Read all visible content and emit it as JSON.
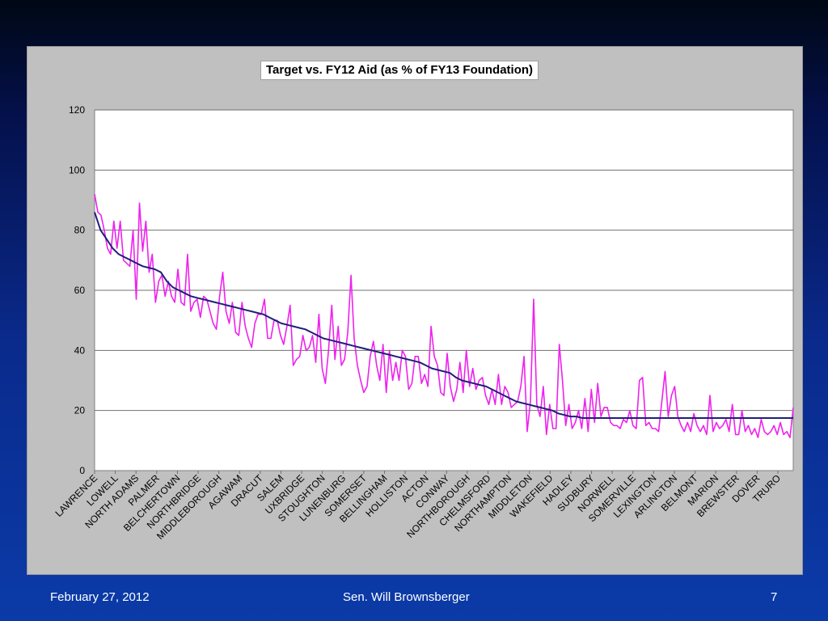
{
  "footer": {
    "date": "February 27, 2012",
    "author": "Sen. Will Brownsberger",
    "page_number": "7"
  },
  "colors": {
    "target_line": "#1f1f7a",
    "aid_line": "#ee22ee",
    "plot_bg": "#ffffff",
    "panel_bg": "#c0c0c0"
  },
  "chart_data": {
    "type": "line",
    "title": "Target vs. FY12 Aid (as %  of FY13 Foundation)",
    "xlabel": "",
    "ylabel": "",
    "ylim": [
      0,
      120
    ],
    "yticks": [
      0,
      20,
      40,
      60,
      80,
      100,
      120
    ],
    "grid": true,
    "legend": "none",
    "x_tick_labels": [
      "LAWRENCE",
      "LOWELL",
      "NORTH ADAMS",
      "PALMER",
      "BELCHERTOWN",
      "NORTHBRIDGE",
      "MIDDLEBOROUGH",
      "AGAWAM",
      "DRACUT",
      "SALEM",
      "UXBRIDGE",
      "STOUGHTON",
      "LUNENBURG",
      "SOMERSET",
      "BELLINGHAM",
      "HOLLISTON",
      "ACTON",
      "CONWAY",
      "NORTHBOROUGH",
      "CHELMSFORD",
      "NORTHAMPTON",
      "MIDDLETON",
      "WAKEFIELD",
      "HADLEY",
      "SUDBURY",
      "NORWELL",
      "SOMERVILLE",
      "LEXINGTON",
      "ARLINGTON",
      "BELMONT",
      "MARION",
      "BREWSTER",
      "DOVER",
      "TRURO"
    ],
    "series": [
      {
        "key": "target",
        "values": [
          86,
          80,
          77,
          74,
          72,
          71,
          70,
          69,
          68,
          67.5,
          67,
          66,
          63,
          61,
          60,
          59,
          58,
          57.5,
          57,
          56.5,
          56,
          55.5,
          55,
          54.5,
          54,
          53.5,
          53,
          52.5,
          52,
          51,
          50,
          49,
          48.5,
          48,
          47.5,
          47,
          46,
          45,
          44,
          43.5,
          43,
          42.5,
          42,
          41.5,
          41,
          40.5,
          40,
          39.5,
          39,
          38.5,
          38,
          37.5,
          37,
          36.5,
          36,
          35,
          34,
          33.5,
          33,
          32.5,
          31,
          30,
          29.5,
          29,
          28.5,
          28,
          27,
          26,
          25,
          24,
          23,
          22.5,
          22,
          21.5,
          21,
          20.5,
          20,
          19,
          18.5,
          18,
          18,
          17.5,
          17.5,
          17.5,
          17.5,
          17.5,
          17.5,
          17.5,
          17.5,
          17.5,
          17.5,
          17.5,
          17.5,
          17.5,
          17.5,
          17.5,
          17.5,
          17.5,
          17.5,
          17.5,
          17.5,
          17.5,
          17.5,
          17.5,
          17.5,
          17.5,
          17.5,
          17.5,
          17.5,
          17.5,
          17.5,
          17.5,
          17.5,
          17.5,
          17.5,
          17.5,
          17.5
        ]
      },
      {
        "key": "aid",
        "values": [
          92,
          86,
          85,
          80,
          74,
          72,
          83,
          74,
          83,
          70,
          69,
          68,
          80,
          57,
          89,
          73,
          83,
          66,
          72,
          56,
          63,
          65,
          58,
          63,
          58,
          56,
          67,
          56,
          55,
          72,
          53,
          56,
          57,
          51,
          58,
          57,
          53,
          49,
          47,
          58,
          66,
          53,
          49,
          56,
          46,
          45,
          56,
          48,
          44,
          41,
          49,
          52,
          52,
          57,
          44,
          44,
          50,
          50,
          45,
          42,
          48,
          55,
          35,
          37,
          38,
          45,
          40,
          41,
          45,
          36,
          52,
          34,
          29,
          40,
          55,
          37,
          48,
          35,
          37,
          46,
          65,
          44,
          35,
          30,
          26,
          28,
          38,
          43,
          35,
          30,
          42,
          26,
          40,
          30,
          36,
          30,
          40,
          38,
          27,
          29,
          38,
          38,
          29,
          32,
          28,
          48,
          38,
          35,
          26,
          25,
          39,
          28,
          23,
          27,
          36,
          26,
          40,
          28,
          34,
          27,
          30,
          31,
          25,
          22,
          27,
          22,
          32,
          22,
          28,
          26,
          21,
          22,
          23,
          28,
          38,
          13,
          23,
          57,
          22,
          18,
          28,
          12,
          22,
          14,
          14,
          42,
          30,
          15,
          22,
          14,
          16,
          20,
          14,
          24,
          13,
          27,
          16,
          29,
          18,
          21,
          21,
          16,
          15,
          15,
          14,
          17,
          16,
          20,
          15,
          14,
          30,
          31,
          15,
          16,
          14,
          14,
          13,
          23,
          33,
          18,
          25,
          28,
          18,
          15,
          13,
          16,
          13,
          19,
          15,
          13,
          15,
          12,
          25,
          13,
          16,
          14,
          15,
          17,
          13,
          22,
          12,
          12,
          20,
          13,
          15,
          12,
          14,
          11,
          17,
          13,
          12,
          13,
          15,
          12,
          16,
          12,
          13,
          11,
          21
        ],
        "x_start": 0,
        "x_end": 120
      }
    ]
  }
}
